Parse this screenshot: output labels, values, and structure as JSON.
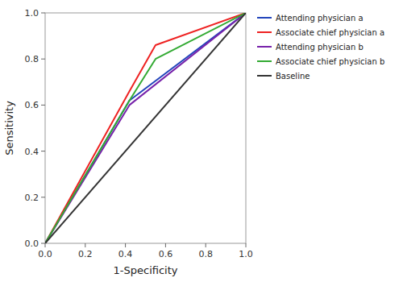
{
  "chart_data": {
    "type": "line",
    "x_label": "1-Specificity",
    "y_label": "Sensitivity",
    "xlim": [
      0.0,
      1.0
    ],
    "ylim": [
      0.0,
      1.0
    ],
    "xticks": [
      {
        "value": 0.0,
        "label": "0.0"
      },
      0.2,
      0.4,
      0.6,
      0.8,
      {
        "value": 1.0,
        "label": "1.0"
      }
    ],
    "yticks": [
      {
        "value": 0.0,
        "label": "0.0"
      },
      0.2,
      0.4,
      0.6,
      0.8,
      {
        "value": 1.0,
        "label": "1.0"
      }
    ],
    "grid": false,
    "legend": "right",
    "series": [
      {
        "name": "Attending physician a",
        "color": "#2244bb",
        "x": [
          0.0,
          0.42,
          1.0
        ],
        "values": [
          0.0,
          0.62,
          1.0
        ]
      },
      {
        "name": "Associate chief physician a",
        "color": "#ee2222",
        "x": [
          0.0,
          0.42,
          0.55,
          1.0
        ],
        "values": [
          0.0,
          0.66,
          0.86,
          1.0
        ]
      },
      {
        "name": "Attending physician b",
        "color": "#7722aa",
        "x": [
          0.0,
          0.42,
          1.0
        ],
        "values": [
          0.0,
          0.6,
          1.0
        ]
      },
      {
        "name": "Associate chief physician b",
        "color": "#33aa33",
        "x": [
          0.0,
          0.42,
          0.55,
          1.0
        ],
        "values": [
          0.0,
          0.62,
          0.8,
          1.0
        ]
      },
      {
        "name": "Baseline",
        "color": "#333333",
        "x": [
          0.0,
          1.0
        ],
        "values": [
          0.0,
          1.0
        ]
      }
    ]
  }
}
